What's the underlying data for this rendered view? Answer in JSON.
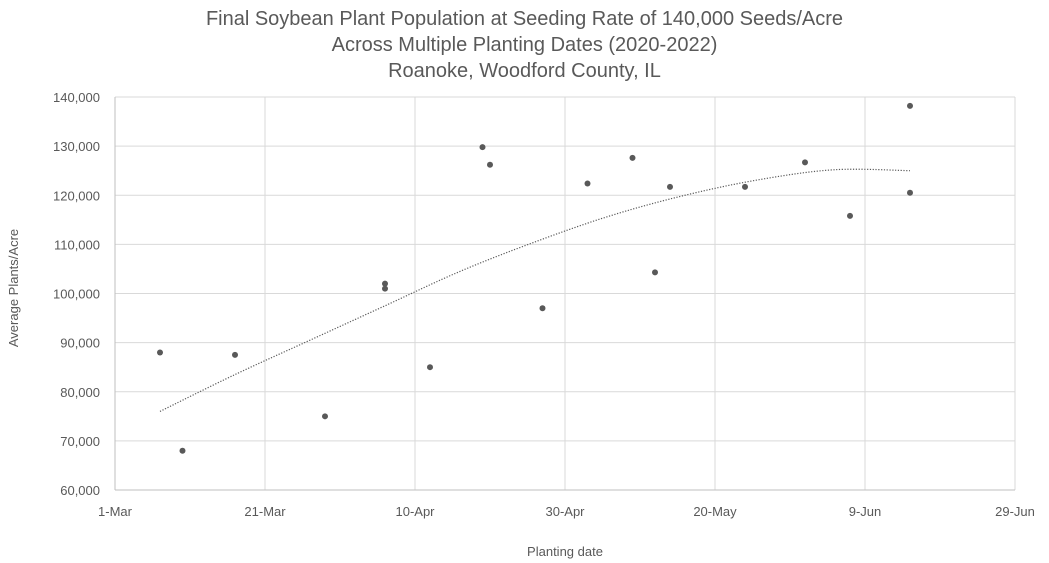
{
  "chart_data": {
    "type": "scatter",
    "title_lines": [
      "Final Soybean Plant Population at Seeding Rate of 140,000 Seeds/Acre",
      "Across Multiple Planting Dates (2020-2022)",
      "Roanoke, Woodford County, IL"
    ],
    "xlabel": "Planting date",
    "ylabel": "Average Plants/Acre",
    "x_ticks": [
      "1-Mar",
      "21-Mar",
      "10-Apr",
      "30-Apr",
      "20-May",
      "9-Jun",
      "29-Jun"
    ],
    "y_ticks": [
      "60,000",
      "70,000",
      "80,000",
      "90,000",
      "100,000",
      "110,000",
      "120,000",
      "130,000",
      "140,000"
    ],
    "xlim": [
      "1-Mar",
      "29-Jun"
    ],
    "ylim": [
      60000,
      140000
    ],
    "grid": true,
    "legend": "none",
    "point_color": "#595959",
    "trend_color": "#595959",
    "points": [
      {
        "x": "7-Mar",
        "y": 88000
      },
      {
        "x": "10-Mar",
        "y": 68000
      },
      {
        "x": "17-Mar",
        "y": 87500
      },
      {
        "x": "29-Mar",
        "y": 75000
      },
      {
        "x": "6-Apr",
        "y": 102000
      },
      {
        "x": "6-Apr",
        "y": 101000
      },
      {
        "x": "12-Apr",
        "y": 85000
      },
      {
        "x": "19-Apr",
        "y": 129800
      },
      {
        "x": "20-Apr",
        "y": 126200
      },
      {
        "x": "27-Apr",
        "y": 97000
      },
      {
        "x": "3-May",
        "y": 122400
      },
      {
        "x": "9-May",
        "y": 127600
      },
      {
        "x": "12-May",
        "y": 104300
      },
      {
        "x": "14-May",
        "y": 121700
      },
      {
        "x": "24-May",
        "y": 121700
      },
      {
        "x": "1-Jun",
        "y": 126700
      },
      {
        "x": "7-Jun",
        "y": 115800
      },
      {
        "x": "15-Jun",
        "y": 138200
      },
      {
        "x": "15-Jun",
        "y": 120500
      }
    ],
    "trendline": {
      "type": "polynomial",
      "points": [
        {
          "x": "7-Mar",
          "y": 76000
        },
        {
          "x": "17-Mar",
          "y": 83500
        },
        {
          "x": "27-Mar",
          "y": 90500
        },
        {
          "x": "6-Apr",
          "y": 97500
        },
        {
          "x": "16-Apr",
          "y": 104500
        },
        {
          "x": "26-Apr",
          "y": 110500
        },
        {
          "x": "6-May",
          "y": 115800
        },
        {
          "x": "16-May",
          "y": 120000
        },
        {
          "x": "26-May",
          "y": 123200
        },
        {
          "x": "5-Jun",
          "y": 125200
        },
        {
          "x": "15-Jun",
          "y": 125000
        }
      ]
    }
  }
}
